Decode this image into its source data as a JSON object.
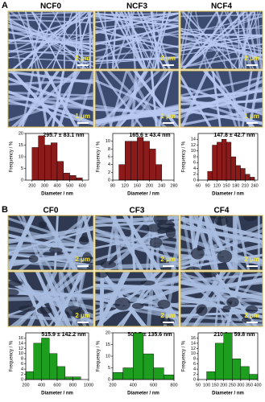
{
  "panels": [
    {
      "label": "A",
      "columns": [
        "NCF0",
        "NCF3",
        "NCF4"
      ],
      "scale_bars": [
        [
          "2 μm",
          "2 μm",
          "2 μm"
        ],
        [
          "1 μm",
          "1 μm",
          "1 μm"
        ]
      ]
    },
    {
      "label": "B",
      "columns": [
        "CF0",
        "CF3",
        "CF4"
      ],
      "scale_bars": [
        [
          "2 μm",
          "2 μm",
          "2 μm"
        ],
        [
          "2 μm",
          "2 μm",
          "2 μm"
        ]
      ]
    }
  ],
  "chart_data": [
    {
      "type": "histogram",
      "title": "295.7 ± 83.1 nm",
      "xlabel": "Diameter / nm",
      "ylabel": "Frequency / %",
      "color": "#8b1a1a",
      "bins": [
        200,
        250,
        300,
        350,
        400,
        450,
        500,
        550,
        600
      ],
      "values": [
        14,
        19,
        15,
        16,
        8,
        3,
        2,
        1
      ],
      "xlim": [
        150,
        650
      ],
      "ylim": [
        0,
        20
      ],
      "xticks": [
        200,
        300,
        400,
        500,
        600
      ],
      "yticks": [
        0,
        5,
        10,
        15,
        20
      ]
    },
    {
      "type": "histogram",
      "title": "165.6 ± 43.4 nm",
      "xlabel": "Diameter / nm",
      "ylabel": "Frequency / %",
      "color": "#8b1a1a",
      "bins": [
        100,
        120,
        140,
        160,
        180,
        200,
        220,
        240
      ],
      "values": [
        4,
        10,
        10,
        11,
        10,
        8,
        4
      ],
      "xlim": [
        80,
        280
      ],
      "ylim": [
        0,
        12
      ],
      "xticks": [
        80,
        120,
        160,
        200,
        240,
        280
      ],
      "yticks": [
        0,
        2,
        4,
        6,
        8,
        10
      ]
    },
    {
      "type": "histogram",
      "title": "147.8 ± 42.7 nm",
      "xlabel": "Diameter / nm",
      "ylabel": "Frequency / %",
      "color": "#8b1a1a",
      "bins": [
        90,
        105,
        120,
        135,
        150,
        165,
        180,
        195,
        210,
        225,
        240
      ],
      "values": [
        3,
        12,
        13,
        14,
        13,
        8,
        5,
        4,
        2,
        1
      ],
      "xlim": [
        60,
        250
      ],
      "ylim": [
        0,
        16
      ],
      "xticks": [
        60,
        90,
        120,
        150,
        180,
        210,
        240
      ],
      "yticks": [
        0,
        2,
        4,
        6,
        8,
        10,
        12,
        14
      ]
    },
    {
      "type": "histogram",
      "title": "515.9 ± 142.2 nm",
      "xlabel": "Diameter / nm",
      "ylabel": "Frequency / %",
      "color": "#1e9e1e",
      "bins": [
        200,
        300,
        400,
        500,
        600,
        700,
        800,
        900
      ],
      "values": [
        3,
        14,
        16,
        10,
        5,
        1,
        1
      ],
      "xlim": [
        200,
        1000
      ],
      "ylim": [
        0,
        18
      ],
      "xticks": [
        200,
        400,
        600,
        800,
        1000
      ],
      "yticks": [
        0,
        2,
        4,
        6,
        8,
        10,
        12,
        14,
        16
      ]
    },
    {
      "type": "histogram",
      "title": "502.7 ± 135.6 nm",
      "xlabel": "Diameter / nm",
      "ylabel": "Frequency / %",
      "color": "#1e9e1e",
      "bins": [
        200,
        300,
        400,
        500,
        600,
        700,
        800
      ],
      "values": [
        3,
        5,
        20,
        11,
        5,
        2
      ],
      "xlim": [
        200,
        800
      ],
      "ylim": [
        0,
        20
      ],
      "xticks": [
        200,
        400,
        600,
        800
      ],
      "yticks": [
        0,
        5,
        10,
        15,
        20
      ]
    },
    {
      "type": "histogram",
      "title": "210.9 ± 59.8 nm",
      "xlabel": "Diameter / nm",
      "ylabel": "Frequency / %",
      "color": "#1e9e1e",
      "bins": [
        100,
        150,
        200,
        250,
        300,
        350,
        400
      ],
      "values": [
        3,
        14,
        18,
        8,
        5,
        2
      ],
      "xlim": [
        50,
        400
      ],
      "ylim": [
        0,
        18
      ],
      "xticks": [
        50,
        100,
        150,
        200,
        250,
        300,
        350,
        400
      ],
      "yticks": [
        0,
        2,
        4,
        6,
        8,
        10,
        12,
        14,
        16
      ]
    }
  ]
}
